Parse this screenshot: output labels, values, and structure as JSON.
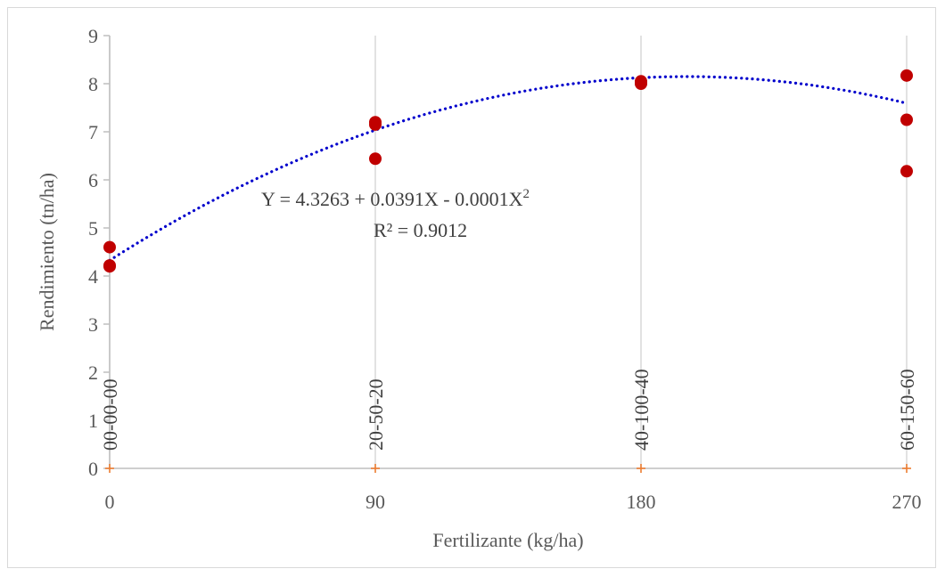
{
  "chart_data": {
    "type": "scatter",
    "xlabel": "Fertilizante (kg/ha)",
    "ylabel": "Rendimiento (tn/ha)",
    "xlim": [
      0,
      270
    ],
    "ylim": [
      0,
      9
    ],
    "x_ticks": [
      0,
      90,
      180,
      270
    ],
    "y_ticks": [
      0,
      1,
      2,
      3,
      4,
      5,
      6,
      7,
      8,
      9
    ],
    "grid": "vertical",
    "category_labels": [
      {
        "x": 0,
        "label": "00-00-00"
      },
      {
        "x": 90,
        "label": "20-50-20"
      },
      {
        "x": 180,
        "label": "40-100-40"
      },
      {
        "x": 270,
        "label": "60-150-60"
      }
    ],
    "series": [
      {
        "marker": "circle",
        "color": "#c00000",
        "points": [
          {
            "x": 0,
            "y": 4.6
          },
          {
            "x": 0,
            "y": 4.2
          },
          {
            "x": 0,
            "y": 4.22
          },
          {
            "x": 90,
            "y": 7.2
          },
          {
            "x": 90,
            "y": 7.15
          },
          {
            "x": 90,
            "y": 6.44
          },
          {
            "x": 180,
            "y": 8.05
          },
          {
            "x": 180,
            "y": 8.0
          },
          {
            "x": 180,
            "y": 8.02
          },
          {
            "x": 270,
            "y": 8.17
          },
          {
            "x": 270,
            "y": 7.25
          },
          {
            "x": 270,
            "y": 6.18
          }
        ]
      },
      {
        "marker": "plus",
        "color": "#ed7d31",
        "points": [
          {
            "x": 0,
            "y": 0
          },
          {
            "x": 90,
            "y": 0
          },
          {
            "x": 180,
            "y": 0
          },
          {
            "x": 270,
            "y": 0
          }
        ]
      }
    ],
    "trendline": {
      "type": "polynomial",
      "color": "#0000cc",
      "style": "dotted",
      "coefficients": [
        4.3263,
        0.0391,
        -0.0001
      ],
      "x_range": [
        0,
        270
      ]
    },
    "annotations": {
      "equation_main": "Y = 4.3263 + 0.0391X - 0.0001X",
      "equation_sup": "2",
      "r_squared": "R² = 0.9012"
    }
  }
}
